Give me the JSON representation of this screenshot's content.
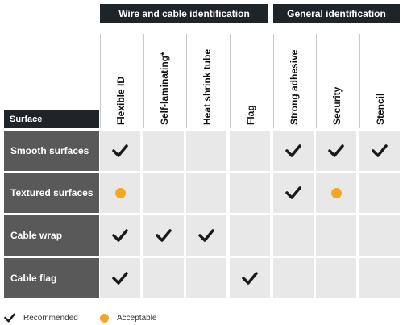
{
  "groups": {
    "wire_cable": "Wire and cable identification",
    "general": "General identification"
  },
  "surface_header": "Surface",
  "columns": [
    "Flexible ID",
    "Self-laminating*",
    "Heat shrink tube",
    "Flag",
    "Strong adhesive",
    "Security",
    "Stencil"
  ],
  "rows": [
    {
      "label": "Smooth surfaces",
      "marks": [
        "check",
        "",
        "",
        "",
        "check",
        "check",
        "check"
      ]
    },
    {
      "label": "Textured surfaces",
      "marks": [
        "dot",
        "",
        "",
        "",
        "check",
        "dot",
        ""
      ]
    },
    {
      "label": "Cable wrap",
      "marks": [
        "check",
        "check",
        "check",
        "",
        "",
        "",
        ""
      ]
    },
    {
      "label": "Cable flag",
      "marks": [
        "check",
        "",
        "",
        "check",
        "",
        "",
        ""
      ]
    }
  ],
  "legend": {
    "recommended": "Recommended",
    "acceptable": "Acceptable"
  },
  "colors": {
    "header_bg": "#1f2429",
    "row_label_bg": "#595959",
    "cell_bg": "#e8e8e8",
    "acceptable": "#f5a623"
  }
}
